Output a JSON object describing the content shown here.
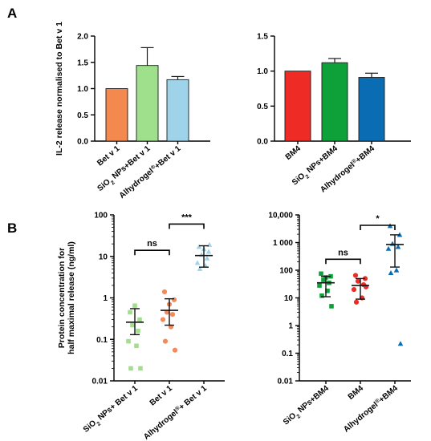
{
  "panels": {
    "a": "A",
    "b": "B"
  },
  "chart_data": [
    {
      "id": "A-left",
      "type": "bar",
      "scale": "linear",
      "ylabel": "IL-2 release normalised to Bet v 1",
      "ylim": [
        0,
        2
      ],
      "yticks": [
        0,
        0.5,
        1,
        1.5,
        2
      ],
      "ytick_labels": [
        "0.0",
        "0.5",
        "1.0",
        "1.5",
        "2.0"
      ],
      "categories": [
        {
          "main": "Bet v 1"
        },
        {
          "main": "SiO",
          "sub": "2",
          "rest": " NPs+Bet v 1"
        },
        {
          "main": "Alhydrogel",
          "sup": "®",
          "rest": "+Bet v 1"
        }
      ],
      "values": [
        1.0,
        1.44,
        1.17
      ],
      "errors": [
        0,
        0.34,
        0.06
      ],
      "colors": [
        "#f4894f",
        "#9ee08b",
        "#9ed3ea"
      ]
    },
    {
      "id": "A-right",
      "type": "bar",
      "scale": "linear",
      "ylabel": "",
      "ylim": [
        0,
        1.5
      ],
      "yticks": [
        0,
        0.5,
        1,
        1.5
      ],
      "ytick_labels": [
        "0.0",
        "0.5",
        "1.0",
        "1.5"
      ],
      "categories": [
        {
          "main": "BM4"
        },
        {
          "main": "SiO",
          "sub": "2",
          "rest": " NPs+BM4"
        },
        {
          "main": "Alhydrogel",
          "sup": "®",
          "rest": "+BM4"
        }
      ],
      "values": [
        1.0,
        1.12,
        0.91
      ],
      "errors": [
        0,
        0.06,
        0.06
      ],
      "colors": [
        "#ee2b25",
        "#0ea139",
        "#0a6db4"
      ]
    },
    {
      "id": "B-left",
      "type": "scatter",
      "scale": "log",
      "ylabel": "Protein concentration for|half maximal release (ng/ml)",
      "ylim": [
        0.01,
        100
      ],
      "yticks": [
        0.01,
        0.1,
        1,
        10,
        100
      ],
      "ytick_labels": [
        "0.01",
        "0.1",
        "1",
        "10",
        "100"
      ],
      "categories": [
        {
          "main": "SiO",
          "sub": "2",
          "rest": " NPs+ Bet v 1"
        },
        {
          "main": "Bet v 1"
        },
        {
          "main": "Alhydrogel",
          "sup": "®",
          "rest": "+ Bet v 1"
        }
      ],
      "series": [
        {
          "marker": "square",
          "color": "#a3de8f",
          "mean": 0.26,
          "low": 0.13,
          "high": 0.55,
          "points": [
            0.45,
            0.3,
            0.22,
            0.16,
            0.09,
            0.07,
            0.02,
            0.02,
            0.65
          ]
        },
        {
          "marker": "circle",
          "color": "#f4895a",
          "mean": 0.5,
          "low": 0.22,
          "high": 0.95,
          "points": [
            1.4,
            0.9,
            0.45,
            0.4,
            0.3,
            0.2,
            0.09,
            0.055,
            0.7
          ]
        },
        {
          "marker": "triangle",
          "color": "#9ed3ea",
          "mean": 10.5,
          "low": 5.5,
          "high": 18,
          "points": [
            17,
            13,
            11,
            9,
            7,
            6,
            5,
            19,
            15
          ]
        }
      ],
      "brackets": [
        {
          "from": 0,
          "to": 1,
          "label": "ns",
          "y": 14
        },
        {
          "from": 1,
          "to": 2,
          "label": "***",
          "y": 60
        }
      ]
    },
    {
      "id": "B-right",
      "type": "scatter",
      "scale": "log",
      "ylabel": "",
      "ylim": [
        0.01,
        10000
      ],
      "yticks": [
        0.01,
        0.1,
        1,
        10,
        100,
        1000,
        10000
      ],
      "ytick_labels": [
        "0.01",
        "0.1",
        "1",
        "10",
        "100",
        "1 000",
        "10,000"
      ],
      "categories": [
        {
          "main": "SiO",
          "sub": "2",
          "rest": " NPs+BM4"
        },
        {
          "main": "BM4"
        },
        {
          "main": "Alhydrogel",
          "sup": "®",
          "rest": "+BM4"
        }
      ],
      "series": [
        {
          "marker": "square",
          "color": "#0ea139",
          "mean": 35,
          "low": 11,
          "high": 60,
          "points": [
            75,
            60,
            45,
            35,
            28,
            18,
            12,
            5,
            55
          ]
        },
        {
          "marker": "circle",
          "color": "#ee2b25",
          "mean": 28,
          "low": 9,
          "high": 50,
          "points": [
            65,
            50,
            40,
            30,
            20,
            10,
            7,
            25
          ]
        },
        {
          "marker": "triangle",
          "color": "#0a6db4",
          "mean": 850,
          "low": 130,
          "high": 1900,
          "points": [
            4000,
            1900,
            900,
            700,
            600,
            100,
            80,
            0.22
          ]
        }
      ],
      "brackets": [
        {
          "from": 0,
          "to": 1,
          "label": "ns",
          "y": 250
        },
        {
          "from": 1,
          "to": 2,
          "label": "*",
          "y": 4200
        }
      ]
    }
  ]
}
